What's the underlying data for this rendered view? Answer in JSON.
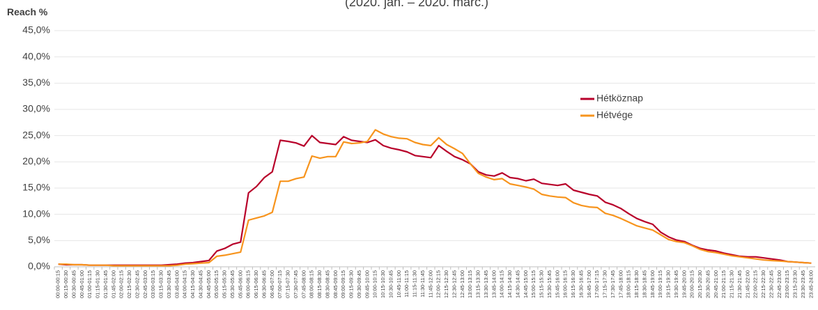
{
  "chart_data": {
    "type": "line",
    "title": "(2020. jan. – 2020. márc.)",
    "y_label": "Reach %",
    "categories": [
      "00:00-00:15",
      "00:15-00:30",
      "00:30-00:45",
      "00:45-01:00",
      "01:00-01:15",
      "01:15-01:30",
      "01:30-01:45",
      "01:45-02:00",
      "02:00-02:15",
      "02:15-02:30",
      "02:30-02:45",
      "02:45-03:00",
      "03:00-03:15",
      "03:15-03:30",
      "03:30-03:45",
      "03:45-04:00",
      "04:00-04:15",
      "04:15-04:30",
      "04:30-04:45",
      "04:45-05:00",
      "05:00-05:15",
      "05:15-05:30",
      "05:30-05:45",
      "05:45-06:00",
      "06:00-06:15",
      "06:15-06:30",
      "06:30-06:45",
      "06:45-07:00",
      "07:00-07:15",
      "07:15-07:30",
      "07:30-07:45",
      "07:45-08:00",
      "08:00-08:15",
      "08:15-08:30",
      "08:30-08:45",
      "08:45-09:00",
      "09:00-09:15",
      "09:15-09:30",
      "09:30-09:45",
      "09:45-10:00",
      "10:00-10:15",
      "10:15-10:30",
      "10:30-10:45",
      "10:45-11:00",
      "11:00-11:15",
      "11:15-11:30",
      "11:30-11:45",
      "11:45-12:00",
      "12:00-12:15",
      "12:15-12:30",
      "12:30-12:45",
      "12:45-13:00",
      "13:00-13:15",
      "13:15-13:30",
      "13:30-13:45",
      "13:45-14:00",
      "14:00-14:15",
      "14:15-14:30",
      "14:30-14:45",
      "14:45-15:00",
      "15:00-15:15",
      "15:15-15:30",
      "15:30-15:45",
      "15:45-16:00",
      "16:00-16:15",
      "16:15-16:30",
      "16:30-16:45",
      "16:45-17:00",
      "17:00-17:15",
      "17:15-17:30",
      "17:30-17:45",
      "17:45-18:00",
      "18:00-18:15",
      "18:15-18:30",
      "18:30-18:45",
      "18:45-19:00",
      "19:00-19:15",
      "19:15-19:30",
      "19:30-19:45",
      "19:45-20:00",
      "20:00-20:15",
      "20:15-20:30",
      "20:30-20:45",
      "20:45-21:00",
      "21:00-21:15",
      "21:15-21:30",
      "21:30-21:45",
      "21:45-22:00",
      "22:00-22:15",
      "22:15-22:30",
      "22:30-22:45",
      "22:45-23:00",
      "23:00-23:15",
      "23:15-23:30",
      "23:30-23:45",
      "23:45-24:00"
    ],
    "series": [
      {
        "name": "Hétköznap",
        "color": "#b8002a",
        "values": [
          0.5,
          0.4,
          0.4,
          0.4,
          0.3,
          0.3,
          0.3,
          0.3,
          0.3,
          0.3,
          0.3,
          0.3,
          0.3,
          0.3,
          0.4,
          0.5,
          0.7,
          0.8,
          1.0,
          1.2,
          3.0,
          3.5,
          4.3,
          4.7,
          14.1,
          15.3,
          17.0,
          18.1,
          24.1,
          23.9,
          23.6,
          23.0,
          25.0,
          23.7,
          23.5,
          23.3,
          24.8,
          24.1,
          23.9,
          23.7,
          24.2,
          23.1,
          22.6,
          22.3,
          21.9,
          21.2,
          21.0,
          20.8,
          23.1,
          22.0,
          21.0,
          20.4,
          19.6,
          18.1,
          17.5,
          17.3,
          17.9,
          17.0,
          16.8,
          16.4,
          16.7,
          15.9,
          15.7,
          15.5,
          15.8,
          14.6,
          14.2,
          13.8,
          13.5,
          12.3,
          11.8,
          11.1,
          10.1,
          9.2,
          8.6,
          8.1,
          6.6,
          5.7,
          5.1,
          4.8,
          4.1,
          3.5,
          3.2,
          3.0,
          2.6,
          2.3,
          2.0,
          1.9,
          1.9,
          1.7,
          1.5,
          1.3,
          1.0,
          0.9,
          0.8,
          0.7
        ]
      },
      {
        "name": "Hétvége",
        "color": "#f7941d",
        "values": [
          0.5,
          0.5,
          0.4,
          0.4,
          0.3,
          0.3,
          0.3,
          0.2,
          0.2,
          0.2,
          0.2,
          0.2,
          0.2,
          0.2,
          0.2,
          0.3,
          0.5,
          0.6,
          0.7,
          0.8,
          2.0,
          2.2,
          2.5,
          2.8,
          8.9,
          9.3,
          9.7,
          10.4,
          16.3,
          16.3,
          16.8,
          17.1,
          21.1,
          20.7,
          21.0,
          21.0,
          23.8,
          23.5,
          23.6,
          23.9,
          26.1,
          25.3,
          24.8,
          24.5,
          24.4,
          23.7,
          23.3,
          23.1,
          24.6,
          23.3,
          22.5,
          21.6,
          19.6,
          17.8,
          17.1,
          16.6,
          16.8,
          15.8,
          15.5,
          15.2,
          14.8,
          13.8,
          13.5,
          13.3,
          13.2,
          12.2,
          11.7,
          11.4,
          11.3,
          10.2,
          9.8,
          9.2,
          8.5,
          7.8,
          7.4,
          7.0,
          6.1,
          5.2,
          4.8,
          4.6,
          4.0,
          3.3,
          2.9,
          2.7,
          2.4,
          2.1,
          1.9,
          1.7,
          1.5,
          1.3,
          1.2,
          1.1,
          1.0,
          0.9,
          0.8,
          0.7
        ]
      }
    ],
    "ylim": [
      0,
      45
    ],
    "yticks": [
      {
        "value": 0,
        "label": "0,0%"
      },
      {
        "value": 5,
        "label": "5,0%"
      },
      {
        "value": 10,
        "label": "10,0%"
      },
      {
        "value": 15,
        "label": "15,0%"
      },
      {
        "value": 20,
        "label": "20,0%"
      },
      {
        "value": 25,
        "label": "25,0%"
      },
      {
        "value": 30,
        "label": "30,0%"
      },
      {
        "value": 35,
        "label": "35,0%"
      },
      {
        "value": 40,
        "label": "40,0%"
      },
      {
        "value": 45,
        "label": "45,0%"
      }
    ],
    "grid": true
  }
}
